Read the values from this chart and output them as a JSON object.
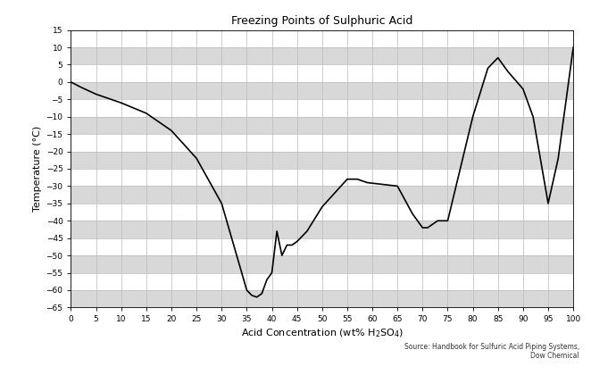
{
  "title": "Freezing Points of Sulphuric Acid",
  "xlabel_text": "Acid Concentration (wt% H$_2$SO$_4$)",
  "ylabel": "Temperature (°C)",
  "source_text": "Source: Handbook for Sulfuric Acid Piping Systems,\nDow Chemical",
  "xlim": [
    0,
    100
  ],
  "ylim": [
    -65,
    15
  ],
  "xticks": [
    0,
    5,
    10,
    15,
    20,
    25,
    30,
    35,
    40,
    45,
    50,
    55,
    60,
    65,
    70,
    75,
    80,
    85,
    90,
    95,
    100
  ],
  "yticks": [
    -65,
    -60,
    -55,
    -50,
    -45,
    -40,
    -35,
    -30,
    -25,
    -20,
    -15,
    -10,
    -5,
    0,
    5,
    10,
    15
  ],
  "line_color": "#000000",
  "line_width": 1.2,
  "background_color": "#ffffff",
  "plot_bg_color": "#ffffff",
  "grid_major_color": "#bbbbbb",
  "grid_minor_color": "#dddddd",
  "band_color": "#d8d8d8",
  "x": [
    0,
    2,
    5,
    8,
    10,
    15,
    20,
    25,
    30,
    35,
    36,
    37,
    38,
    39,
    40,
    41,
    42,
    43,
    44,
    45,
    47,
    50,
    55,
    57,
    59,
    62,
    65,
    68,
    70,
    71,
    73,
    75,
    80,
    83,
    85,
    87,
    90,
    92,
    95,
    97,
    100
  ],
  "y": [
    0,
    -1.5,
    -3.5,
    -5,
    -6,
    -9,
    -14,
    -22,
    -35,
    -60,
    -61.5,
    -62,
    -61,
    -57,
    -55,
    -43,
    -50,
    -47,
    -47,
    -46,
    -43,
    -36,
    -28,
    -28,
    -29,
    -29.5,
    -30,
    -38,
    -42,
    -42,
    -40,
    -40,
    -10,
    4,
    7,
    3,
    -2,
    -10,
    -35,
    -22,
    10
  ]
}
